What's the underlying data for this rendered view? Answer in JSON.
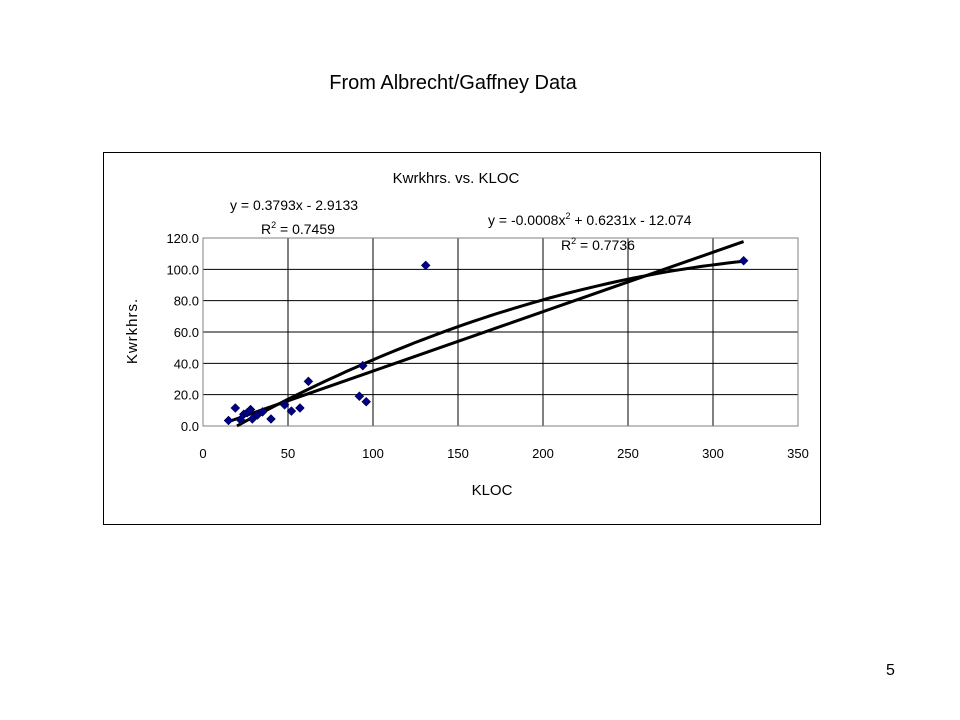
{
  "slide": {
    "title": "From Albrecht/Gaffney Data",
    "page_number": "5"
  },
  "chart_data": {
    "type": "scatter",
    "title": "Kwrkhrs. vs. KLOC",
    "xlabel": "KLOC",
    "ylabel": "Kwrkhrs.",
    "xlim": [
      0,
      350
    ],
    "ylim": [
      0,
      120
    ],
    "xticks": [
      0,
      50,
      100,
      150,
      200,
      250,
      300,
      350
    ],
    "yticks": [
      0.0,
      20.0,
      40.0,
      60.0,
      80.0,
      100.0,
      120.0
    ],
    "ytick_labels": [
      "0.0",
      "20.0",
      "40.0",
      "60.0",
      "80.0",
      "100.0",
      "120.0"
    ],
    "grid": true,
    "marker_color": "#000080",
    "trend_color": "#000000",
    "points": [
      {
        "x": 15,
        "y": 3.5
      },
      {
        "x": 19,
        "y": 11.5
      },
      {
        "x": 22,
        "y": 4.0
      },
      {
        "x": 24,
        "y": 7.5
      },
      {
        "x": 26,
        "y": 8.5
      },
      {
        "x": 28,
        "y": 10.5
      },
      {
        "x": 29,
        "y": 4.5
      },
      {
        "x": 32,
        "y": 7.0
      },
      {
        "x": 35,
        "y": 9.0
      },
      {
        "x": 40,
        "y": 4.5
      },
      {
        "x": 48,
        "y": 13.5
      },
      {
        "x": 52,
        "y": 9.5
      },
      {
        "x": 57,
        "y": 11.5
      },
      {
        "x": 62,
        "y": 28.5
      },
      {
        "x": 92,
        "y": 19.0
      },
      {
        "x": 94,
        "y": 38.5
      },
      {
        "x": 96,
        "y": 15.5
      },
      {
        "x": 131,
        "y": 102.5
      },
      {
        "x": 318,
        "y": 105.5
      }
    ],
    "trendlines": [
      {
        "kind": "linear",
        "coefficients": [
          0.3793,
          -2.9133
        ],
        "x_range": [
          15,
          318
        ],
        "equation": "y = 0.3793x - 2.9133",
        "r2_label": "R",
        "r2_sup": "2",
        "r2_value": " = 0.7459"
      },
      {
        "kind": "polynomial",
        "coefficients": [
          -0.0008,
          0.6231,
          -12.074
        ],
        "x_range": [
          20,
          318
        ],
        "equation_prefix": "y = -0.0008x",
        "equation_sup": "2",
        "equation_suffix": " + 0.6231x - 12.074",
        "r2_label": "R",
        "r2_sup": "2",
        "r2_value": " = 0.7736"
      }
    ]
  }
}
